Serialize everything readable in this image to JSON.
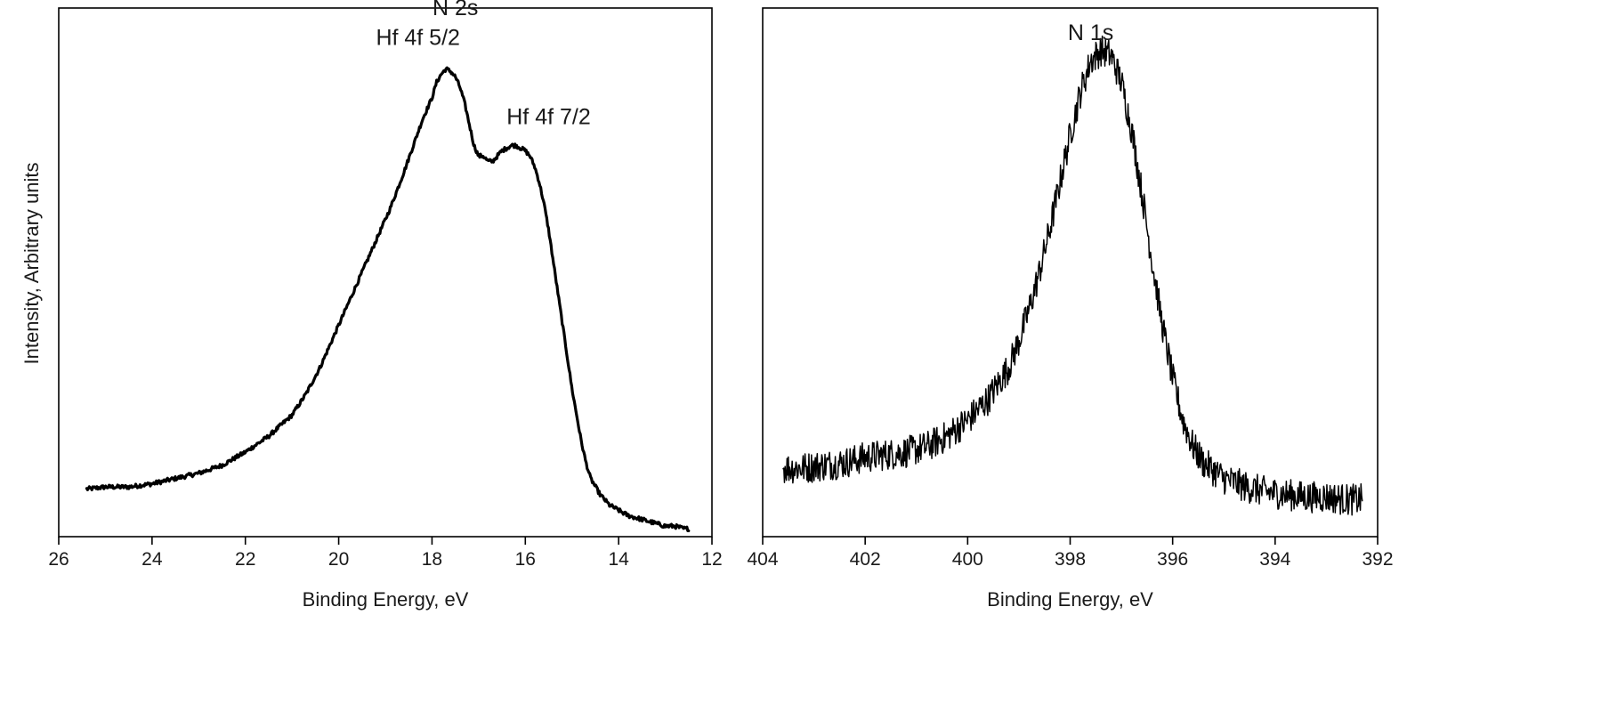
{
  "chart_data": [
    {
      "id": "left",
      "type": "line",
      "title": "",
      "xlabel": "Binding Energy, eV",
      "ylabel": "Intensity, Arbitrary units",
      "xlim": [
        26,
        12
      ],
      "ylim": [
        0,
        1
      ],
      "x_reversed": true,
      "y_ticks_shown": false,
      "grid": false,
      "xticks": [
        26,
        24,
        22,
        20,
        18,
        16,
        14,
        12
      ],
      "xtick_labels": [
        "26",
        "24",
        "22",
        "20",
        "18",
        "16",
        "14",
        "12"
      ],
      "series": [
        {
          "x": [
            25.4,
            25.0,
            24.5,
            24.0,
            23.5,
            23.0,
            22.5,
            22.0,
            21.5,
            21.0,
            20.7,
            20.4,
            20.1,
            19.8,
            19.5,
            19.2,
            18.9,
            18.6,
            18.4,
            18.2,
            18.0,
            17.9,
            17.8,
            17.7,
            17.6,
            17.5,
            17.4,
            17.3,
            17.2,
            17.1,
            17.0,
            16.9,
            16.8,
            16.7,
            16.6,
            16.5,
            16.4,
            16.3,
            16.2,
            16.1,
            16.0,
            15.9,
            15.8,
            15.7,
            15.6,
            15.5,
            15.4,
            15.3,
            15.2,
            15.1,
            15.0,
            14.9,
            14.8,
            14.7,
            14.6,
            14.4,
            14.2,
            14.0,
            13.8,
            13.6,
            13.4,
            13.2,
            13.0,
            12.8,
            12.6,
            12.5
          ],
          "y": [
            0.09,
            0.094,
            0.094,
            0.1,
            0.11,
            0.12,
            0.135,
            0.16,
            0.19,
            0.23,
            0.27,
            0.32,
            0.38,
            0.44,
            0.5,
            0.56,
            0.62,
            0.69,
            0.74,
            0.79,
            0.83,
            0.86,
            0.875,
            0.885,
            0.88,
            0.87,
            0.85,
            0.82,
            0.78,
            0.74,
            0.72,
            0.72,
            0.71,
            0.71,
            0.72,
            0.73,
            0.735,
            0.74,
            0.74,
            0.735,
            0.73,
            0.72,
            0.7,
            0.67,
            0.63,
            0.58,
            0.52,
            0.46,
            0.4,
            0.34,
            0.28,
            0.23,
            0.18,
            0.14,
            0.11,
            0.08,
            0.06,
            0.05,
            0.04,
            0.035,
            0.03,
            0.025,
            0.02,
            0.02,
            0.015,
            0.015
          ]
        }
      ],
      "annotations": [
        {
          "text": "N 2s",
          "x": 17.5,
          "y": 1.0
        },
        {
          "text": "Hf 4f 5/2",
          "x": 18.3,
          "y": 0.93
        },
        {
          "text": "Hf 4f 7/2",
          "x": 15.5,
          "y": 0.78
        }
      ]
    },
    {
      "id": "right",
      "type": "line",
      "title": "",
      "xlabel": "Binding Energy, eV",
      "ylabel": "",
      "xlim": [
        404,
        392
      ],
      "ylim": [
        0,
        1
      ],
      "x_reversed": true,
      "y_ticks_shown": false,
      "grid": false,
      "xticks": [
        404,
        402,
        400,
        398,
        396,
        394,
        392
      ],
      "xtick_labels": [
        "404",
        "402",
        "400",
        "398",
        "396",
        "394",
        "392"
      ],
      "series": [
        {
          "x": [
            403.6,
            403.2,
            402.8,
            402.4,
            402.0,
            401.6,
            401.2,
            400.8,
            400.4,
            400.0,
            399.6,
            399.2,
            399.0,
            398.8,
            398.6,
            398.4,
            398.2,
            398.0,
            397.8,
            397.6,
            397.4,
            397.2,
            397.0,
            396.8,
            396.6,
            396.4,
            396.2,
            396.0,
            395.8,
            395.6,
            395.4,
            395.0,
            394.6,
            394.2,
            393.8,
            393.4,
            393.0,
            392.6,
            392.3
          ],
          "y": [
            0.13,
            0.13,
            0.135,
            0.14,
            0.15,
            0.155,
            0.16,
            0.17,
            0.19,
            0.22,
            0.26,
            0.32,
            0.37,
            0.43,
            0.5,
            0.58,
            0.67,
            0.76,
            0.84,
            0.9,
            0.92,
            0.91,
            0.86,
            0.77,
            0.65,
            0.52,
            0.4,
            0.3,
            0.22,
            0.17,
            0.14,
            0.11,
            0.095,
            0.085,
            0.08,
            0.075,
            0.075,
            0.07,
            0.07
          ]
        }
      ],
      "annotations": [
        {
          "text": "N 1s",
          "x": 397.6,
          "y": 1.0
        }
      ]
    }
  ]
}
